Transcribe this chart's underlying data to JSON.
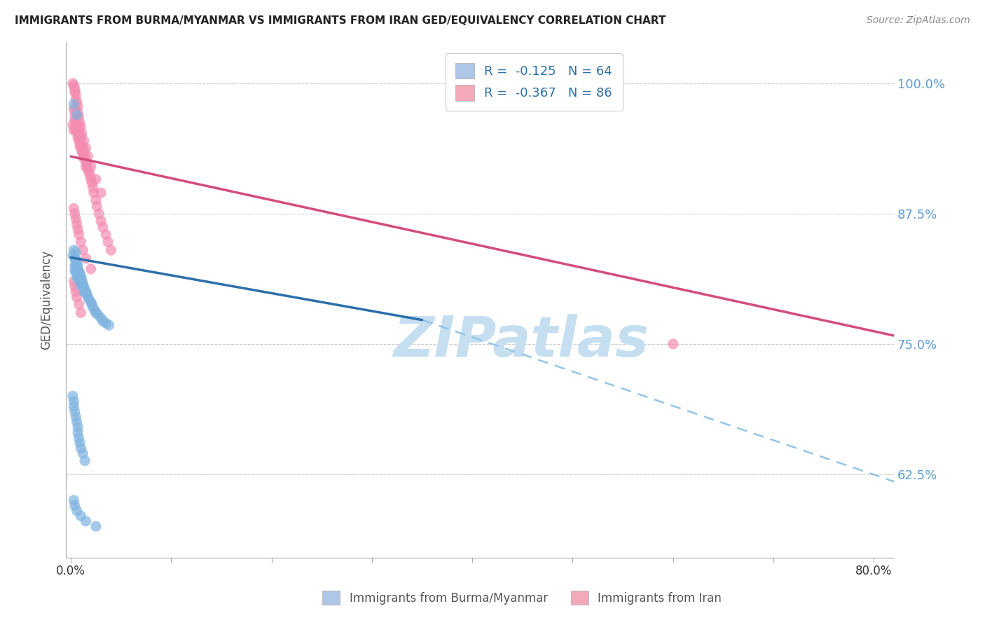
{
  "title": "IMMIGRANTS FROM BURMA/MYANMAR VS IMMIGRANTS FROM IRAN GED/EQUIVALENCY CORRELATION CHART",
  "source": "Source: ZipAtlas.com",
  "ylabel": "GED/Equivalency",
  "ytick_labels": [
    "100.0%",
    "87.5%",
    "75.0%",
    "62.5%"
  ],
  "ytick_values": [
    1.0,
    0.875,
    0.75,
    0.625
  ],
  "xtick_positions": [
    0.0,
    0.1,
    0.2,
    0.3,
    0.4,
    0.5,
    0.6,
    0.7,
    0.8
  ],
  "xlim": [
    -0.005,
    0.82
  ],
  "ylim": [
    0.545,
    1.04
  ],
  "legend": {
    "blue_label": "R =  -0.125   N = 64",
    "pink_label": "R =  -0.367   N = 86",
    "blue_color": "#aec6e8",
    "pink_color": "#f4a8b8"
  },
  "blue_scatter_x": [
    0.002,
    0.003,
    0.004,
    0.004,
    0.004,
    0.005,
    0.005,
    0.005,
    0.005,
    0.006,
    0.006,
    0.006,
    0.006,
    0.007,
    0.007,
    0.007,
    0.008,
    0.008,
    0.009,
    0.009,
    0.01,
    0.01,
    0.01,
    0.011,
    0.011,
    0.012,
    0.013,
    0.013,
    0.014,
    0.015,
    0.016,
    0.017,
    0.018,
    0.02,
    0.021,
    0.022,
    0.024,
    0.025,
    0.027,
    0.03,
    0.032,
    0.035,
    0.038,
    0.002,
    0.003,
    0.003,
    0.004,
    0.005,
    0.006,
    0.007,
    0.007,
    0.008,
    0.009,
    0.01,
    0.012,
    0.014,
    0.003,
    0.004,
    0.006,
    0.01,
    0.015,
    0.025,
    0.003,
    0.006
  ],
  "blue_scatter_y": [
    0.835,
    0.84,
    0.832,
    0.825,
    0.82,
    0.838,
    0.83,
    0.825,
    0.82,
    0.83,
    0.825,
    0.818,
    0.815,
    0.825,
    0.82,
    0.812,
    0.82,
    0.815,
    0.818,
    0.812,
    0.815,
    0.81,
    0.806,
    0.812,
    0.808,
    0.808,
    0.805,
    0.8,
    0.802,
    0.8,
    0.798,
    0.795,
    0.793,
    0.79,
    0.788,
    0.785,
    0.782,
    0.78,
    0.778,
    0.775,
    0.772,
    0.77,
    0.768,
    0.7,
    0.695,
    0.69,
    0.685,
    0.68,
    0.675,
    0.67,
    0.665,
    0.66,
    0.655,
    0.65,
    0.645,
    0.638,
    0.6,
    0.595,
    0.59,
    0.585,
    0.58,
    0.575,
    0.98,
    0.97
  ],
  "pink_scatter_x": [
    0.002,
    0.003,
    0.003,
    0.004,
    0.004,
    0.005,
    0.005,
    0.005,
    0.005,
    0.006,
    0.006,
    0.006,
    0.007,
    0.007,
    0.007,
    0.007,
    0.008,
    0.008,
    0.008,
    0.009,
    0.009,
    0.009,
    0.01,
    0.01,
    0.01,
    0.011,
    0.011,
    0.012,
    0.012,
    0.013,
    0.013,
    0.014,
    0.015,
    0.015,
    0.016,
    0.017,
    0.018,
    0.019,
    0.02,
    0.021,
    0.022,
    0.023,
    0.025,
    0.026,
    0.028,
    0.03,
    0.032,
    0.035,
    0.037,
    0.04,
    0.002,
    0.003,
    0.004,
    0.004,
    0.005,
    0.005,
    0.006,
    0.007,
    0.007,
    0.008,
    0.009,
    0.01,
    0.011,
    0.013,
    0.015,
    0.017,
    0.02,
    0.025,
    0.03,
    0.003,
    0.004,
    0.005,
    0.006,
    0.007,
    0.008,
    0.01,
    0.012,
    0.015,
    0.02,
    0.003,
    0.004,
    0.005,
    0.006,
    0.008,
    0.01,
    0.6
  ],
  "pink_scatter_y": [
    0.96,
    0.955,
    0.975,
    0.965,
    0.97,
    0.965,
    0.975,
    0.96,
    0.955,
    0.968,
    0.96,
    0.955,
    0.962,
    0.958,
    0.952,
    0.948,
    0.955,
    0.95,
    0.945,
    0.95,
    0.945,
    0.94,
    0.948,
    0.942,
    0.938,
    0.94,
    0.935,
    0.938,
    0.932,
    0.935,
    0.928,
    0.93,
    0.925,
    0.92,
    0.922,
    0.918,
    0.915,
    0.912,
    0.908,
    0.905,
    0.9,
    0.895,
    0.888,
    0.882,
    0.875,
    0.868,
    0.862,
    0.855,
    0.848,
    0.84,
    1.0,
    0.998,
    0.995,
    0.992,
    0.99,
    0.985,
    0.982,
    0.978,
    0.972,
    0.968,
    0.962,
    0.958,
    0.952,
    0.945,
    0.938,
    0.93,
    0.92,
    0.908,
    0.895,
    0.88,
    0.875,
    0.87,
    0.865,
    0.86,
    0.855,
    0.848,
    0.84,
    0.832,
    0.822,
    0.81,
    0.805,
    0.8,
    0.795,
    0.788,
    0.78,
    0.75
  ],
  "blue_solid_line_x": [
    0.0,
    0.35
  ],
  "blue_solid_line_y": [
    0.833,
    0.773
  ],
  "blue_dash_line_x": [
    0.35,
    0.82
  ],
  "blue_dash_line_y": [
    0.773,
    0.618
  ],
  "pink_line_x": [
    0.0,
    0.82
  ],
  "pink_line_y": [
    0.93,
    0.758
  ],
  "blue_color": "#7fb3e0",
  "blue_color_dark": "#5a9fd4",
  "pink_color": "#f48cb1",
  "pink_color_dark": "#e8628a",
  "blue_line_color": "#2d6faa",
  "pink_line_color": "#d44d7a",
  "blue_dash_color": "#93c5e8",
  "watermark": "ZIPatlas",
  "watermark_color": "#c5dff0",
  "bottom_legend_blue": "Immigrants from Burma/Myanmar",
  "bottom_legend_pink": "Immigrants from Iran"
}
